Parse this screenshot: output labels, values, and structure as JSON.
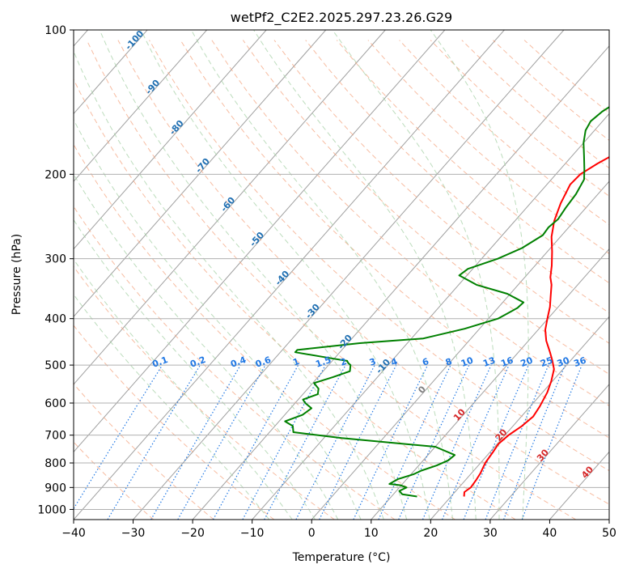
{
  "chart_data": {
    "type": "line",
    "title": "wetPf2_C2E2.2025.297.23.26.G29",
    "xlabel": "Temperature (°C)",
    "ylabel": "Pressure (hPa)",
    "xlim": [
      -40,
      50
    ],
    "ylim": [
      1050,
      100
    ],
    "y_scale": "log",
    "x_ticks": [
      "−40",
      "−30",
      "−20",
      "−10",
      "0",
      "10",
      "20",
      "30",
      "40",
      "50"
    ],
    "y_ticks": [
      "100",
      "200",
      "300",
      "400",
      "500",
      "600",
      "700",
      "800",
      "900",
      "1000"
    ],
    "grid": true,
    "series": [
      {
        "role": "temperature",
        "color": "#ff0000",
        "points": [
          [
            22.2,
            940
          ],
          [
            21.6,
            920
          ],
          [
            22.0,
            900
          ],
          [
            21.8,
            870
          ],
          [
            21.5,
            840
          ],
          [
            20.8,
            800
          ],
          [
            20.5,
            760
          ],
          [
            20.2,
            730
          ],
          [
            20.6,
            700
          ],
          [
            21.5,
            670
          ],
          [
            22.0,
            640
          ],
          [
            21.6,
            610
          ],
          [
            20.8,
            570
          ],
          [
            19.8,
            540
          ],
          [
            18.5,
            510
          ],
          [
            17.0,
            490
          ],
          [
            15.3,
            470
          ],
          [
            13.0,
            445
          ],
          [
            11.2,
            422
          ],
          [
            9.9,
            400
          ],
          [
            8.6,
            378
          ],
          [
            7.2,
            360
          ],
          [
            5.6,
            340
          ],
          [
            4.3,
            328
          ],
          [
            2.8,
            310
          ],
          [
            0.8,
            290
          ],
          [
            -1.5,
            270
          ],
          [
            -3.4,
            250
          ],
          [
            -4.9,
            230
          ],
          [
            -6.1,
            210
          ],
          [
            -5.9,
            200
          ],
          [
            -4.6,
            190
          ],
          [
            -2.8,
            180
          ],
          [
            -0.9,
            170
          ],
          [
            0.0,
            160
          ],
          [
            0.2,
            150
          ],
          [
            0.2,
            140
          ],
          [
            0.8,
            130
          ],
          [
            1.9,
            123
          ],
          [
            1.6,
            116
          ],
          [
            0.6,
            110
          ],
          [
            0.1,
            104
          ],
          [
            0.3,
            100
          ]
        ]
      },
      {
        "role": "dewpoint",
        "color": "#008000",
        "points": [
          [
            14.3,
            940
          ],
          [
            11.5,
            930
          ],
          [
            10.5,
            915
          ],
          [
            11.2,
            900
          ],
          [
            9.8,
            890
          ],
          [
            7.8,
            885
          ],
          [
            8.5,
            865
          ],
          [
            10.4,
            845
          ],
          [
            11.2,
            830
          ],
          [
            13.0,
            810
          ],
          [
            14.2,
            790
          ],
          [
            14.5,
            770
          ],
          [
            10.0,
            740
          ],
          [
            -7.0,
            710
          ],
          [
            -16.0,
            690
          ],
          [
            -17.0,
            670
          ],
          [
            -19.0,
            655
          ],
          [
            -17.0,
            635
          ],
          [
            -16.5,
            615
          ],
          [
            -18.3,
            600
          ],
          [
            -19.2,
            590
          ],
          [
            -17.5,
            575
          ],
          [
            -18.2,
            560
          ],
          [
            -19.8,
            545
          ],
          [
            -17.5,
            530
          ],
          [
            -15.5,
            515
          ],
          [
            -16.3,
            500
          ],
          [
            -17.0,
            495
          ],
          [
            -17.5,
            490
          ],
          [
            -20.0,
            485
          ],
          [
            -27.5,
            470
          ],
          [
            -27.5,
            465
          ],
          [
            -18.0,
            450
          ],
          [
            -8.0,
            440
          ],
          [
            -2.5,
            420
          ],
          [
            1.6,
            400
          ],
          [
            3.3,
            380
          ],
          [
            3.5,
            370
          ],
          [
            -0.5,
            355
          ],
          [
            -7.0,
            340
          ],
          [
            -11.3,
            325
          ],
          [
            -10.8,
            315
          ],
          [
            -7.3,
            300
          ],
          [
            -4.8,
            285
          ],
          [
            -3.2,
            268
          ],
          [
            -3.4,
            258
          ],
          [
            -3.0,
            248
          ],
          [
            -3.4,
            235
          ],
          [
            -3.7,
            220
          ],
          [
            -4.5,
            205
          ],
          [
            -6.0,
            195
          ],
          [
            -8.0,
            183
          ],
          [
            -10.0,
            172
          ],
          [
            -11.5,
            162
          ],
          [
            -12.0,
            155
          ],
          [
            -11.5,
            148
          ],
          [
            -10.5,
            142
          ],
          [
            -8.2,
            138
          ],
          [
            -7.3,
            132
          ],
          [
            -7.6,
            125
          ],
          [
            -7.4,
            120
          ],
          [
            -6.0,
            117
          ],
          [
            -3.5,
            114
          ],
          [
            -1.5,
            110
          ],
          [
            -0.4,
            106
          ],
          [
            0.4,
            100
          ]
        ]
      }
    ],
    "isotherm_labels": [
      "-100",
      "-90",
      "-80",
      "-70",
      "-60",
      "-50",
      "-40",
      "-30",
      "-20",
      "-10",
      "0",
      "10",
      "20",
      "30",
      "40"
    ],
    "mixing_ratio_labels": [
      "0.1",
      "0.2",
      "0.4",
      "0.6",
      "1",
      "1.5",
      "2",
      "3",
      "4",
      "6",
      "8",
      "10",
      "13",
      "16",
      "20",
      "25",
      "30",
      "36"
    ],
    "colors": {
      "temperature": "#ff0000",
      "dewpoint": "#008000",
      "isotherm": "#808080",
      "dry_adiabat": "#f4a582",
      "moist_adiabat": "#a6d0a6",
      "mixing_ratio": "#1f77e4",
      "isotherm_label_cold": "#1f6fb2",
      "isotherm_label_warm": "#d62728"
    }
  }
}
